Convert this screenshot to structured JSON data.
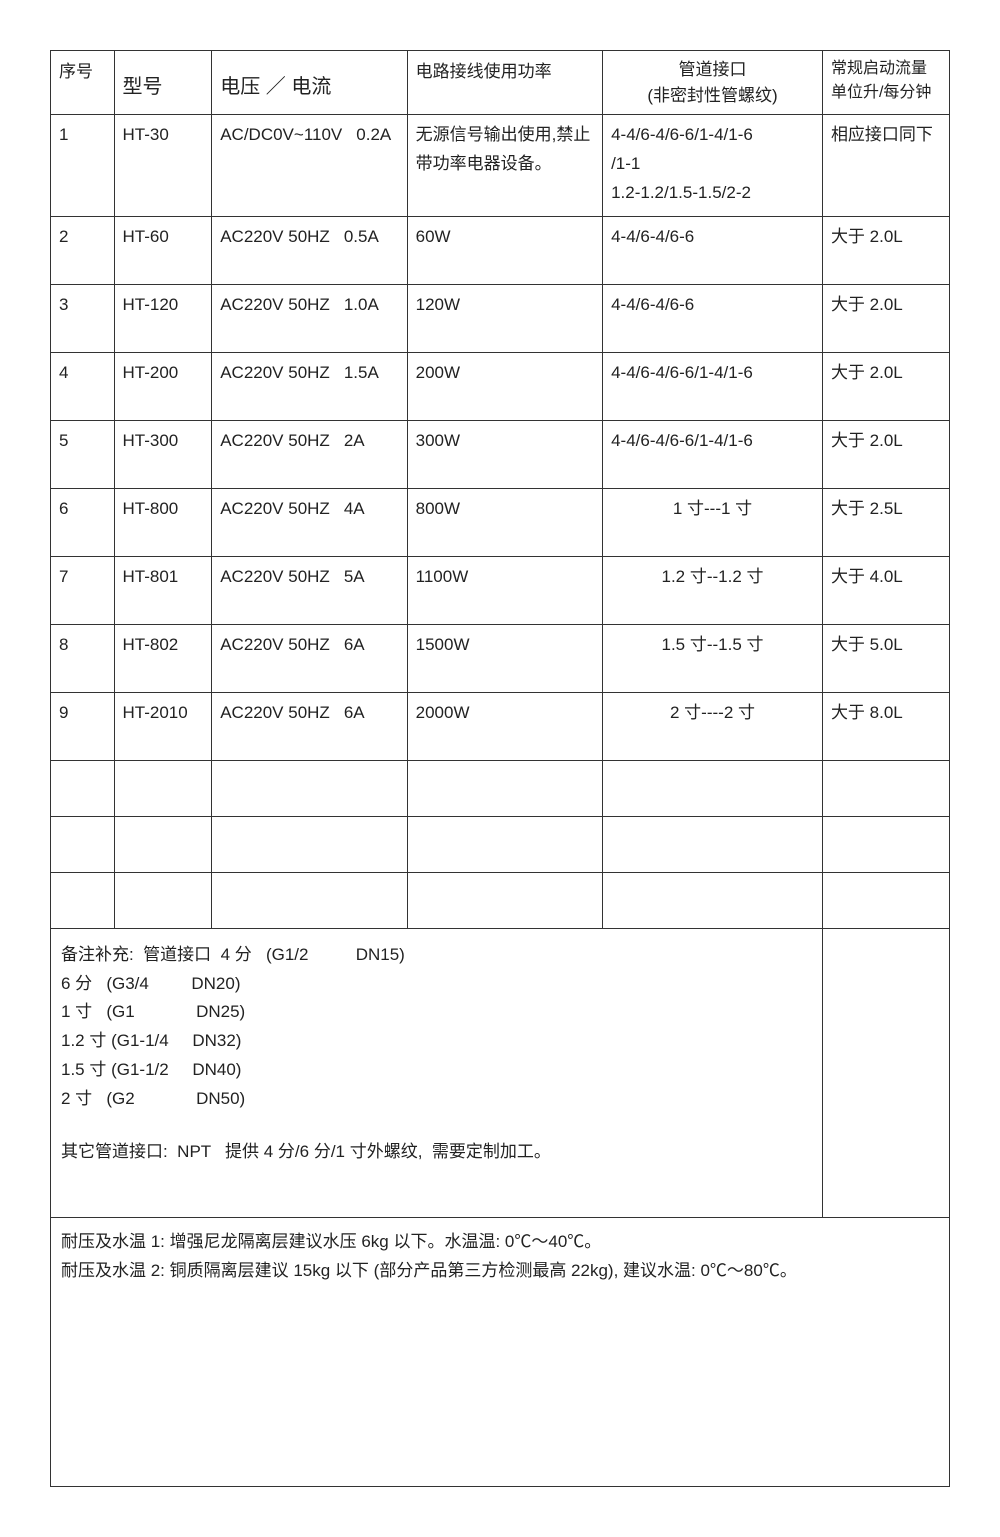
{
  "headers": {
    "seq": "序号",
    "model": "型号",
    "volt": "电压 ／ 电流",
    "power": "电路接线使用功率",
    "pipe_l1": "管道接口",
    "pipe_l2": "(非密封性管螺纹)",
    "flow_l1": "常规启动流量",
    "flow_l2": "单位升/每分钟"
  },
  "rows": [
    {
      "seq": "1",
      "model": "HT-30",
      "volt_main": "AC/DC0V~110V",
      "volt_amp": "0.2A",
      "power_l1": "无源信号输出使用,禁止",
      "power_l2": "带功率电器设备。",
      "pipe_l1": "4-4/6-4/6-6/1-4/1-6",
      "pipe_l2": "/1-1",
      "pipe_l3": "1.2-1.2/1.5-1.5/2-2",
      "flow": "相应接口同下"
    },
    {
      "seq": "2",
      "model": "HT-60",
      "volt_main": "AC220V 50HZ",
      "volt_amp": "0.5A",
      "power": "60W",
      "pipe": "4-4/6-4/6-6",
      "flow": "大于 2.0L"
    },
    {
      "seq": "3",
      "model": "HT-120",
      "volt_main": "AC220V 50HZ",
      "volt_amp": "1.0A",
      "power": "120W",
      "pipe": "4-4/6-4/6-6",
      "flow": "大于 2.0L"
    },
    {
      "seq": "4",
      "model": "HT-200",
      "volt_main": "AC220V 50HZ",
      "volt_amp": "1.5A",
      "power": "200W",
      "pipe": "4-4/6-4/6-6/1-4/1-6",
      "flow": "大于 2.0L"
    },
    {
      "seq": "5",
      "model": "HT-300",
      "volt_main": "AC220V 50HZ",
      "volt_amp": "2A",
      "power": "300W",
      "pipe": "4-4/6-4/6-6/1-4/1-6",
      "flow": "大于 2.0L"
    },
    {
      "seq": "6",
      "model": "HT-800",
      "volt_main": "AC220V 50HZ",
      "volt_amp": "4A",
      "power": "800W",
      "pipe": "1 寸---1 寸",
      "flow": "大于 2.5L"
    },
    {
      "seq": "7",
      "model": "HT-801",
      "volt_main": "AC220V 50HZ",
      "volt_amp": "5A",
      "power": "1100W",
      "pipe": "1.2 寸--1.2 寸",
      "flow": "大于 4.0L"
    },
    {
      "seq": "8",
      "model": "HT-802",
      "volt_main": "AC220V 50HZ",
      "volt_amp": "6A",
      "power": "1500W",
      "pipe": "1.5 寸--1.5 寸",
      "flow": "大于 5.0L"
    },
    {
      "seq": "9",
      "model": "HT-2010",
      "volt_main": "AC220V 50HZ",
      "volt_amp": "6A",
      "power": "2000W",
      "pipe": "2 寸----2 寸",
      "flow": "大于 8.0L"
    }
  ],
  "notes1": {
    "l1": "备注补充:  管道接口  4 分   (G1/2          DN15)",
    "l2": "6 分   (G3/4         DN20)",
    "l3": "1 寸   (G1             DN25)",
    "l4": "1.2 寸 (G1-1/4     DN32)",
    "l5": "1.5 寸 (G1-1/2     DN40)",
    "l6": "2 寸   (G2             DN50)",
    "l7": "其它管道接口:  NPT   提供 4 分/6 分/1 寸外螺纹,  需要定制加工。"
  },
  "notes2": {
    "l1": "耐压及水温 1:  增强尼龙隔离层建议水压 6kg 以下。水温温:  0℃～40℃。",
    "l2": "耐压及水温 2:  铜质隔离层建议 15kg 以下 (部分产品第三方检测最高 22kg),  建议水温:  0℃～80℃。"
  },
  "style": {
    "border_color": "#333333",
    "text_color": "#222222",
    "background_color": "#ffffff",
    "header_fontsize_large": 20,
    "cell_fontsize": 17
  }
}
